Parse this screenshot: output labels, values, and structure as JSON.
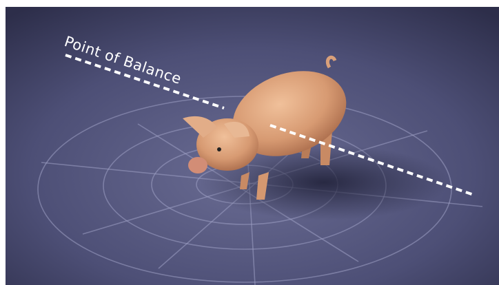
{
  "label": "Point of Balance"
}
